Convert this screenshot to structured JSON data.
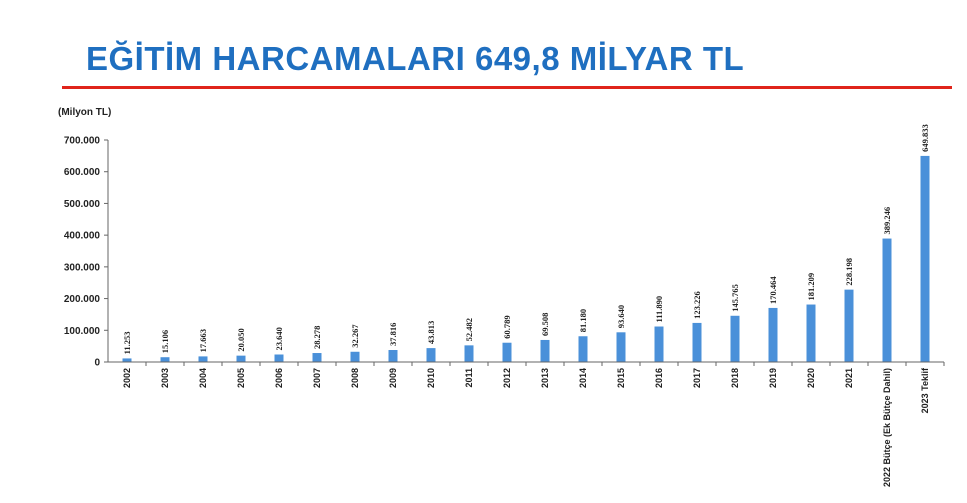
{
  "title": "EĞİTİM HARCAMALARI 649,8 MİLYAR TL",
  "colors": {
    "title": "#1f6fc0",
    "rule": "#e0241b",
    "bar": "#4a90d9"
  },
  "chart_data": {
    "type": "bar",
    "title": "EĞİTİM HARCAMALARI 649,8 MİLYAR TL",
    "ylabel": "(Milyon TL)",
    "xlabel": "",
    "ylim": [
      0,
      700000
    ],
    "yticks": [
      0,
      100000,
      200000,
      300000,
      400000,
      500000,
      600000,
      700000
    ],
    "ytick_labels": [
      "0",
      "100.000",
      "200.000",
      "300.000",
      "400.000",
      "500.000",
      "600.000",
      "700.000"
    ],
    "grid": false,
    "categories": [
      "2002",
      "2003",
      "2004",
      "2005",
      "2006",
      "2007",
      "2008",
      "2009",
      "2010",
      "2011",
      "2012",
      "2013",
      "2014",
      "2015",
      "2016",
      "2017",
      "2018",
      "2019",
      "2020",
      "2021",
      "2022 Bütçe (Ek Bütçe Dahil)",
      "2023 Teklif"
    ],
    "values": [
      11253,
      15106,
      17663,
      20050,
      23640,
      28278,
      32267,
      37816,
      43813,
      52482,
      60789,
      69508,
      81180,
      93640,
      111890,
      123226,
      145765,
      170464,
      181209,
      228198,
      389246,
      649833
    ],
    "data_labels": [
      "11.253",
      "15.106",
      "17.663",
      "20.050",
      "23.640",
      "28.278",
      "32.267",
      "37.816",
      "43.813",
      "52.482",
      "60.789",
      "69.508",
      "81.180",
      "93.640",
      "111.890",
      "123.226",
      "145.765",
      "170.464",
      "181.209",
      "228.198",
      "389.246",
      "649.833"
    ]
  }
}
